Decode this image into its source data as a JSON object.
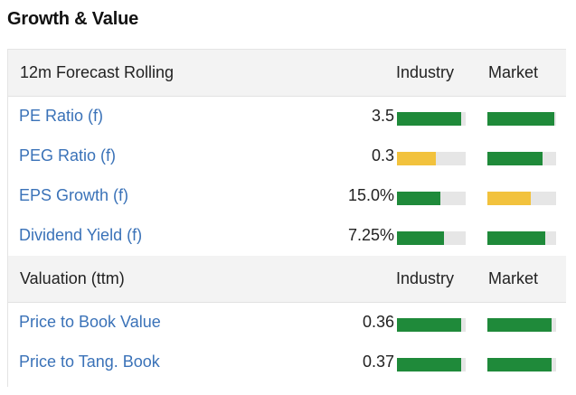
{
  "title": "Growth & Value",
  "colors": {
    "good": "#1f8a3a",
    "neutral": "#f2c23d",
    "track": "#e6e6e6",
    "link": "#3a72b8"
  },
  "sections": [
    {
      "label": "12m Forecast Rolling",
      "col_industry": "Industry",
      "col_market": "Market",
      "rows": [
        {
          "metric": "PE Ratio (f)",
          "value": "3.5",
          "industry": {
            "level": 0.93,
            "color": "good"
          },
          "market": {
            "level": 0.97,
            "color": "good"
          }
        },
        {
          "metric": "PEG Ratio (f)",
          "value": "0.3",
          "industry": {
            "level": 0.57,
            "color": "neutral"
          },
          "market": {
            "level": 0.8,
            "color": "good"
          }
        },
        {
          "metric": "EPS Growth (f)",
          "value": "15.0%",
          "industry": {
            "level": 0.63,
            "color": "good"
          },
          "market": {
            "level": 0.63,
            "color": "neutral"
          }
        },
        {
          "metric": "Dividend Yield (f)",
          "value": "7.25%",
          "industry": {
            "level": 0.68,
            "color": "good"
          },
          "market": {
            "level": 0.84,
            "color": "good"
          }
        }
      ]
    },
    {
      "label": "Valuation (ttm)",
      "col_industry": "Industry",
      "col_market": "Market",
      "rows": [
        {
          "metric": "Price to Book Value",
          "value": "0.36",
          "industry": {
            "level": 0.93,
            "color": "good"
          },
          "market": {
            "level": 0.93,
            "color": "good"
          }
        },
        {
          "metric": "Price to Tang. Book",
          "value": "0.37",
          "industry": {
            "level": 0.93,
            "color": "good"
          },
          "market": {
            "level": 0.93,
            "color": "good"
          }
        }
      ]
    }
  ]
}
